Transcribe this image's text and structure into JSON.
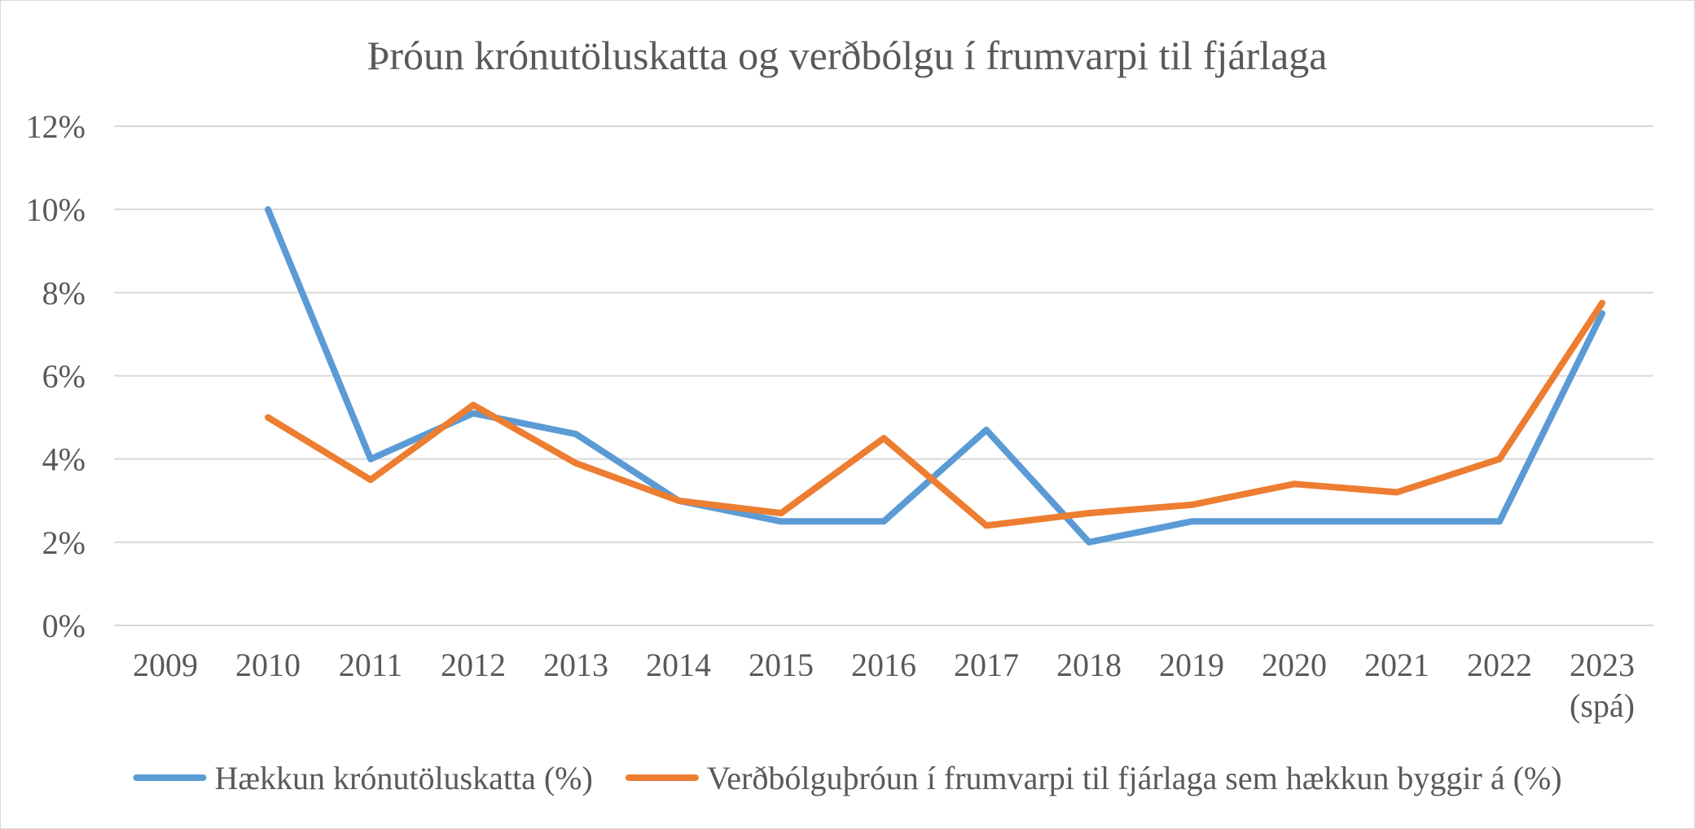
{
  "chart_data": {
    "type": "line",
    "title": "Þróun krónutöluskatta og verðbólgu í frumvarpi til fjárlaga",
    "xlabel": "",
    "ylabel": "",
    "categories": [
      "2009",
      "2010",
      "2011",
      "2012",
      "2013",
      "2014",
      "2015",
      "2016",
      "2017",
      "2018",
      "2019",
      "2020",
      "2021",
      "2022",
      "2023"
    ],
    "category_sublabels": [
      "",
      "",
      "",
      "",
      "",
      "",
      "",
      "",
      "",
      "",
      "",
      "",
      "",
      "",
      "(spá)"
    ],
    "ylim": [
      0,
      12
    ],
    "yticks": [
      0,
      2,
      4,
      6,
      8,
      10,
      12
    ],
    "ytick_labels": [
      "0%",
      "2%",
      "4%",
      "6%",
      "8%",
      "10%",
      "12%"
    ],
    "grid": true,
    "legend_position": "bottom",
    "series": [
      {
        "name": "Hækkun krónutöluskatta (%)",
        "color": "#5b9bd5",
        "values": [
          null,
          10,
          4,
          5.1,
          4.6,
          3,
          2.5,
          2.5,
          4.7,
          2,
          2.5,
          2.5,
          2.5,
          2.5,
          7.5
        ]
      },
      {
        "name": "Verðbólguþróun í frumvarpi til fjárlaga sem hækkun byggir á (%)",
        "color": "#ed7d31",
        "values": [
          null,
          5,
          3.5,
          5.3,
          3.9,
          3,
          2.7,
          4.5,
          2.4,
          2.7,
          2.9,
          3.4,
          3.2,
          4,
          7.75
        ]
      }
    ]
  }
}
